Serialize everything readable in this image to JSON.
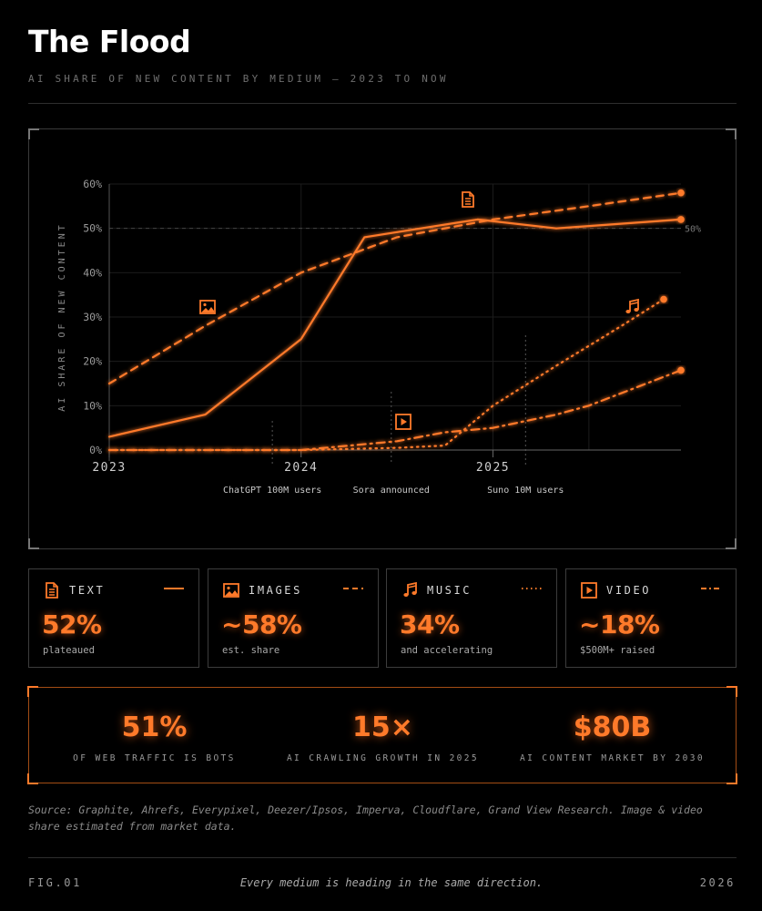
{
  "title": "The Flood",
  "subtitle": "AI SHARE OF NEW CONTENT BY MEDIUM — 2023 TO NOW",
  "colors": {
    "accent": "#ff7a2a",
    "background": "#000000"
  },
  "chart_data": {
    "type": "line",
    "ylabel": "AI SHARE OF NEW CONTENT",
    "ylim": [
      0,
      60
    ],
    "xlim": [
      2023.0,
      2025.98
    ],
    "y_ticks": [
      "0%",
      "10%",
      "20%",
      "30%",
      "40%",
      "50%",
      "60%"
    ],
    "x_ticks": [
      {
        "x": 2023.0,
        "label": "2023"
      },
      {
        "x": 2024.0,
        "label": "2024"
      },
      {
        "x": 2025.0,
        "label": "2025"
      }
    ],
    "reference_line": {
      "y": 50,
      "label": "50%"
    },
    "grid": true,
    "annotations": [
      {
        "x": 2023.85,
        "label": "ChatGPT 100M users"
      },
      {
        "x": 2024.47,
        "label": "Sora announced"
      },
      {
        "x": 2025.17,
        "label": "Suno 10M users"
      }
    ],
    "series": [
      {
        "name": "Text",
        "style": "solid",
        "icon": "document-icon",
        "x": [
          2023.0,
          2023.5,
          2024.0,
          2024.33,
          2024.92,
          2025.33,
          2025.98
        ],
        "y": [
          3,
          8,
          25,
          48,
          52,
          50,
          52
        ]
      },
      {
        "name": "Images",
        "style": "dashed",
        "icon": "image-icon",
        "x": [
          2023.0,
          2023.5,
          2024.0,
          2024.5,
          2025.0,
          2025.5,
          2025.98
        ],
        "y": [
          15,
          28,
          40,
          48,
          52,
          55,
          58
        ]
      },
      {
        "name": "Music",
        "style": "dotted",
        "icon": "music-note-icon",
        "x": [
          2023.0,
          2024.0,
          2024.5,
          2024.75,
          2025.0,
          2025.33,
          2025.67,
          2025.89
        ],
        "y": [
          0,
          0,
          0.5,
          1,
          10,
          19,
          28,
          34
        ]
      },
      {
        "name": "Video",
        "style": "dash-dot",
        "icon": "video-play-icon",
        "x": [
          2023.0,
          2024.0,
          2024.5,
          2024.75,
          2025.0,
          2025.33,
          2025.5,
          2025.98
        ],
        "y": [
          0,
          0,
          2,
          4,
          5,
          8,
          10,
          18
        ]
      }
    ]
  },
  "cards": [
    {
      "label": "TEXT",
      "value": "52%",
      "desc": "plateaued",
      "icon": "document-icon",
      "line": "solid"
    },
    {
      "label": "IMAGES",
      "value": "~58%",
      "desc": "est. share",
      "icon": "image-icon",
      "line": "dashed"
    },
    {
      "label": "MUSIC",
      "value": "34%",
      "desc": "and accelerating",
      "icon": "music-note-icon",
      "line": "dotted"
    },
    {
      "label": "VIDEO",
      "value": "~18%",
      "desc": "$500M+ raised",
      "icon": "video-play-icon",
      "line": "dash-dot"
    }
  ],
  "stats": [
    {
      "value": "51%",
      "label": "OF WEB TRAFFIC IS BOTS"
    },
    {
      "value": "15×",
      "label": "AI CRAWLING GROWTH IN 2025"
    },
    {
      "value": "$80B",
      "label": "AI CONTENT MARKET BY 2030"
    }
  ],
  "source": "Source: Graphite, Ahrefs, Everypixel, Deezer/Ipsos, Imperva, Cloudflare, Grand View Research. Image & video share estimated from market data.",
  "footer": {
    "fig": "FIG.01",
    "tagline": "Every medium is heading in the same direction.",
    "year": "2026"
  }
}
